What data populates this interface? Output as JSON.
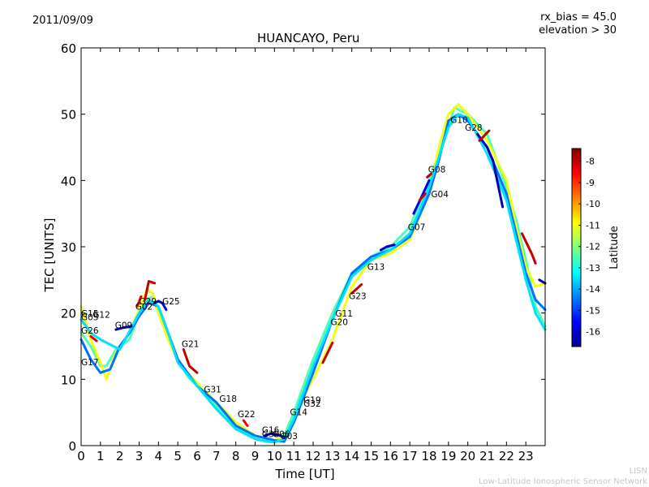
{
  "header": {
    "date": "2011/09/09",
    "bias_line1": "rx_bias = 45.0",
    "bias_line2": "elevation > 30"
  },
  "footer": {
    "line1": "LISN",
    "line2": "Low-Latitude Ionospheric Sensor Network"
  },
  "chart_data": {
    "type": "line",
    "title": "HUANCAYO, Peru",
    "xlabel": "Time [UT]",
    "ylabel": "TEC [UNITS]",
    "xlim": [
      0,
      24
    ],
    "ylim": [
      0,
      60
    ],
    "x_ticks": [
      0,
      1,
      2,
      3,
      4,
      5,
      6,
      7,
      8,
      9,
      10,
      11,
      12,
      13,
      14,
      15,
      16,
      17,
      18,
      19,
      20,
      21,
      22,
      23
    ],
    "y_ticks": [
      0,
      10,
      20,
      30,
      40,
      50,
      60
    ],
    "colorbar": {
      "label": "Latitude",
      "range": [
        -16.7,
        -7.4
      ],
      "ticks": [
        -8,
        -9,
        -10,
        -11,
        -12,
        -13,
        -14,
        -15,
        -16
      ],
      "colors": [
        "#00008f",
        "#0000ff",
        "#0080ff",
        "#00ffff",
        "#80ff80",
        "#ffff00",
        "#ff8000",
        "#ff0000",
        "#800000"
      ]
    },
    "series": [
      {
        "lat": -12.5,
        "x": [
          0,
          0.5,
          1,
          1.3,
          1.8,
          2.5,
          3,
          3.4,
          3.7,
          4,
          4.5,
          5,
          5.5,
          6,
          7,
          8,
          9,
          9.5,
          10,
          10.5,
          11,
          11.5,
          12,
          13,
          14,
          15,
          16,
          17,
          18,
          19,
          19.3,
          20,
          21,
          22,
          22.5,
          23,
          23.5,
          24
        ],
        "y": [
          17,
          15,
          12,
          12,
          14.5,
          16,
          20,
          22,
          22.5,
          20,
          16,
          13,
          10.5,
          9,
          6,
          3,
          1,
          0.6,
          0.5,
          1.5,
          5,
          9,
          13,
          20,
          26,
          28.5,
          30,
          33,
          40,
          48,
          51,
          50,
          47,
          39,
          34,
          28,
          21,
          18
        ]
      },
      {
        "lat": -11.0,
        "x": [
          0,
          0.5,
          1,
          1.3,
          1.8,
          2.5,
          3,
          3.4,
          3.7,
          4,
          4.5,
          5,
          5.5,
          6,
          7,
          8,
          9,
          10,
          10.7,
          11.2,
          11.8,
          12.5,
          13,
          14,
          15,
          16,
          17,
          18,
          18.5,
          19,
          19.5,
          20,
          21,
          22,
          22.5,
          23,
          23.5,
          24
        ],
        "y": [
          21,
          16,
          12.5,
          10,
          14,
          17,
          20.5,
          23.5,
          23,
          20,
          16,
          13,
          11,
          9.5,
          6.5,
          3.5,
          1.5,
          0.8,
          1.5,
          5,
          9,
          13,
          16,
          24,
          28,
          29,
          31,
          38,
          45,
          50,
          51.5,
          50,
          46,
          40,
          33,
          27,
          24,
          24.5
        ]
      },
      {
        "lat": -14.5,
        "x": [
          0,
          0.5,
          1,
          1.5,
          2,
          2.5,
          3,
          3.5,
          4,
          4.5,
          5,
          5.5,
          6,
          7,
          8,
          9,
          10,
          10.5,
          11,
          12,
          13,
          14,
          15,
          16,
          17,
          18,
          18.5,
          19,
          19.5,
          20,
          21,
          22,
          23,
          23.5,
          24
        ],
        "y": [
          16,
          13,
          11,
          11.5,
          15,
          17,
          19.5,
          21.5,
          21,
          17,
          13,
          11,
          9,
          6.5,
          3,
          1.5,
          0.8,
          0.6,
          3.5,
          11,
          19,
          26,
          28.5,
          29.5,
          31.5,
          38,
          43,
          49,
          50,
          49,
          45,
          38,
          26,
          22,
          20.5
        ]
      },
      {
        "lat": -13.5,
        "x": [
          0,
          0.5,
          1,
          2,
          3,
          3.5,
          4,
          4.5,
          5,
          6,
          7,
          8,
          9,
          10,
          10.5,
          11,
          12,
          13,
          14,
          15,
          16,
          17,
          18,
          19,
          19.5,
          20,
          21,
          22,
          23,
          23.5,
          24
        ],
        "y": [
          19,
          17,
          16,
          14.5,
          20,
          22,
          21,
          17,
          12.5,
          9,
          5.5,
          2.5,
          1,
          0.5,
          1,
          4,
          12,
          19,
          25.5,
          28,
          29.5,
          32,
          39,
          48,
          50,
          49.5,
          44,
          37,
          25,
          20,
          17.5
        ]
      },
      {
        "lat": -16.5,
        "x": [
          1.8,
          2.2,
          2.6
        ],
        "y": [
          17.5,
          17.8,
          18
        ]
      },
      {
        "lat": -16.3,
        "x": [
          3.8,
          4.0,
          4.2,
          4.4
        ],
        "y": [
          21.5,
          21.8,
          21.5,
          20.5
        ]
      },
      {
        "lat": -16.2,
        "x": [
          9.5,
          9.8,
          10.2,
          10.5
        ],
        "y": [
          1.5,
          1.8,
          1.6,
          1.3
        ]
      },
      {
        "lat": -16.0,
        "x": [
          15.5,
          15.8,
          16.2
        ],
        "y": [
          29.5,
          30,
          30.3
        ]
      },
      {
        "lat": -16.4,
        "x": [
          20.5,
          21.0,
          21.3,
          21.8
        ],
        "y": [
          47,
          45,
          43,
          36
        ]
      },
      {
        "lat": -16.5,
        "x": [
          23.7,
          24
        ],
        "y": [
          25,
          24.5
        ]
      },
      {
        "lat": -15.7,
        "x": [
          17.2,
          17.6,
          18
        ],
        "y": [
          35,
          37.5,
          40
        ]
      },
      {
        "lat": -8.0,
        "x": [
          3.3,
          3.5,
          3.8
        ],
        "y": [
          22,
          24.8,
          24.5
        ]
      },
      {
        "lat": -8.3,
        "x": [
          0.5,
          0.8
        ],
        "y": [
          16.5,
          15.8
        ]
      },
      {
        "lat": -8.0,
        "x": [
          5.3,
          5.6,
          6.0
        ],
        "y": [
          14.5,
          12,
          11
        ]
      },
      {
        "lat": -8.0,
        "x": [
          12.5,
          13.0
        ],
        "y": [
          12.5,
          15.5
        ]
      },
      {
        "lat": -8.0,
        "x": [
          14,
          14.5
        ],
        "y": [
          23,
          24.3
        ]
      },
      {
        "lat": -8.0,
        "x": [
          17.5,
          17.8
        ],
        "y": [
          37,
          38
        ]
      },
      {
        "lat": -8.0,
        "x": [
          17.9,
          18.1
        ],
        "y": [
          40.5,
          41
        ]
      },
      {
        "lat": -8.0,
        "x": [
          20.6,
          21.1
        ],
        "y": [
          46,
          47.5
        ]
      },
      {
        "lat": -8.0,
        "x": [
          22.8,
          23.3,
          23.5
        ],
        "y": [
          32,
          29,
          27.5
        ]
      },
      {
        "lat": -8.5,
        "x": [
          2.9,
          3.1
        ],
        "y": [
          21,
          22.5
        ]
      },
      {
        "lat": -8.5,
        "x": [
          8.4,
          8.6
        ],
        "y": [
          3.8,
          3.0
        ]
      }
    ],
    "annotations": [
      {
        "text": "G15",
        "x": 0.0,
        "y": 19.5
      },
      {
        "text": "G05",
        "x": 0.0,
        "y": 18.9
      },
      {
        "text": "G12",
        "x": 0.6,
        "y": 19.3
      },
      {
        "text": "G26",
        "x": 0.0,
        "y": 16.9
      },
      {
        "text": "G17",
        "x": 0.0,
        "y": 12.1
      },
      {
        "text": "G09",
        "x": 1.75,
        "y": 17.7
      },
      {
        "text": "G29",
        "x": 3.0,
        "y": 21.3
      },
      {
        "text": "G02",
        "x": 2.8,
        "y": 20.5
      },
      {
        "text": "G25",
        "x": 4.2,
        "y": 21.3
      },
      {
        "text": "G21",
        "x": 5.2,
        "y": 14.9
      },
      {
        "text": "G31",
        "x": 6.35,
        "y": 8.0
      },
      {
        "text": "G18",
        "x": 7.15,
        "y": 6.6
      },
      {
        "text": "G22",
        "x": 8.1,
        "y": 4.3
      },
      {
        "text": "G16",
        "x": 9.35,
        "y": 1.9
      },
      {
        "text": "G30",
        "x": 9.35,
        "y": 1.3
      },
      {
        "text": "G06",
        "x": 9.9,
        "y": 1.3
      },
      {
        "text": "G03",
        "x": 10.3,
        "y": 1.0
      },
      {
        "text": "G19",
        "x": 11.5,
        "y": 6.4
      },
      {
        "text": "G32",
        "x": 11.5,
        "y": 5.9
      },
      {
        "text": "G14",
        "x": 10.8,
        "y": 4.6
      },
      {
        "text": "G11",
        "x": 13.15,
        "y": 19.5
      },
      {
        "text": "G20",
        "x": 12.9,
        "y": 18.2
      },
      {
        "text": "G23",
        "x": 13.85,
        "y": 22.1
      },
      {
        "text": "G13",
        "x": 14.8,
        "y": 26.5
      },
      {
        "text": "G07",
        "x": 16.9,
        "y": 32.5
      },
      {
        "text": "G04",
        "x": 18.1,
        "y": 37.5
      },
      {
        "text": "G08",
        "x": 17.95,
        "y": 41.2
      },
      {
        "text": "G10",
        "x": 19.1,
        "y": 48.7
      },
      {
        "text": "G28",
        "x": 19.85,
        "y": 47.5
      }
    ]
  }
}
